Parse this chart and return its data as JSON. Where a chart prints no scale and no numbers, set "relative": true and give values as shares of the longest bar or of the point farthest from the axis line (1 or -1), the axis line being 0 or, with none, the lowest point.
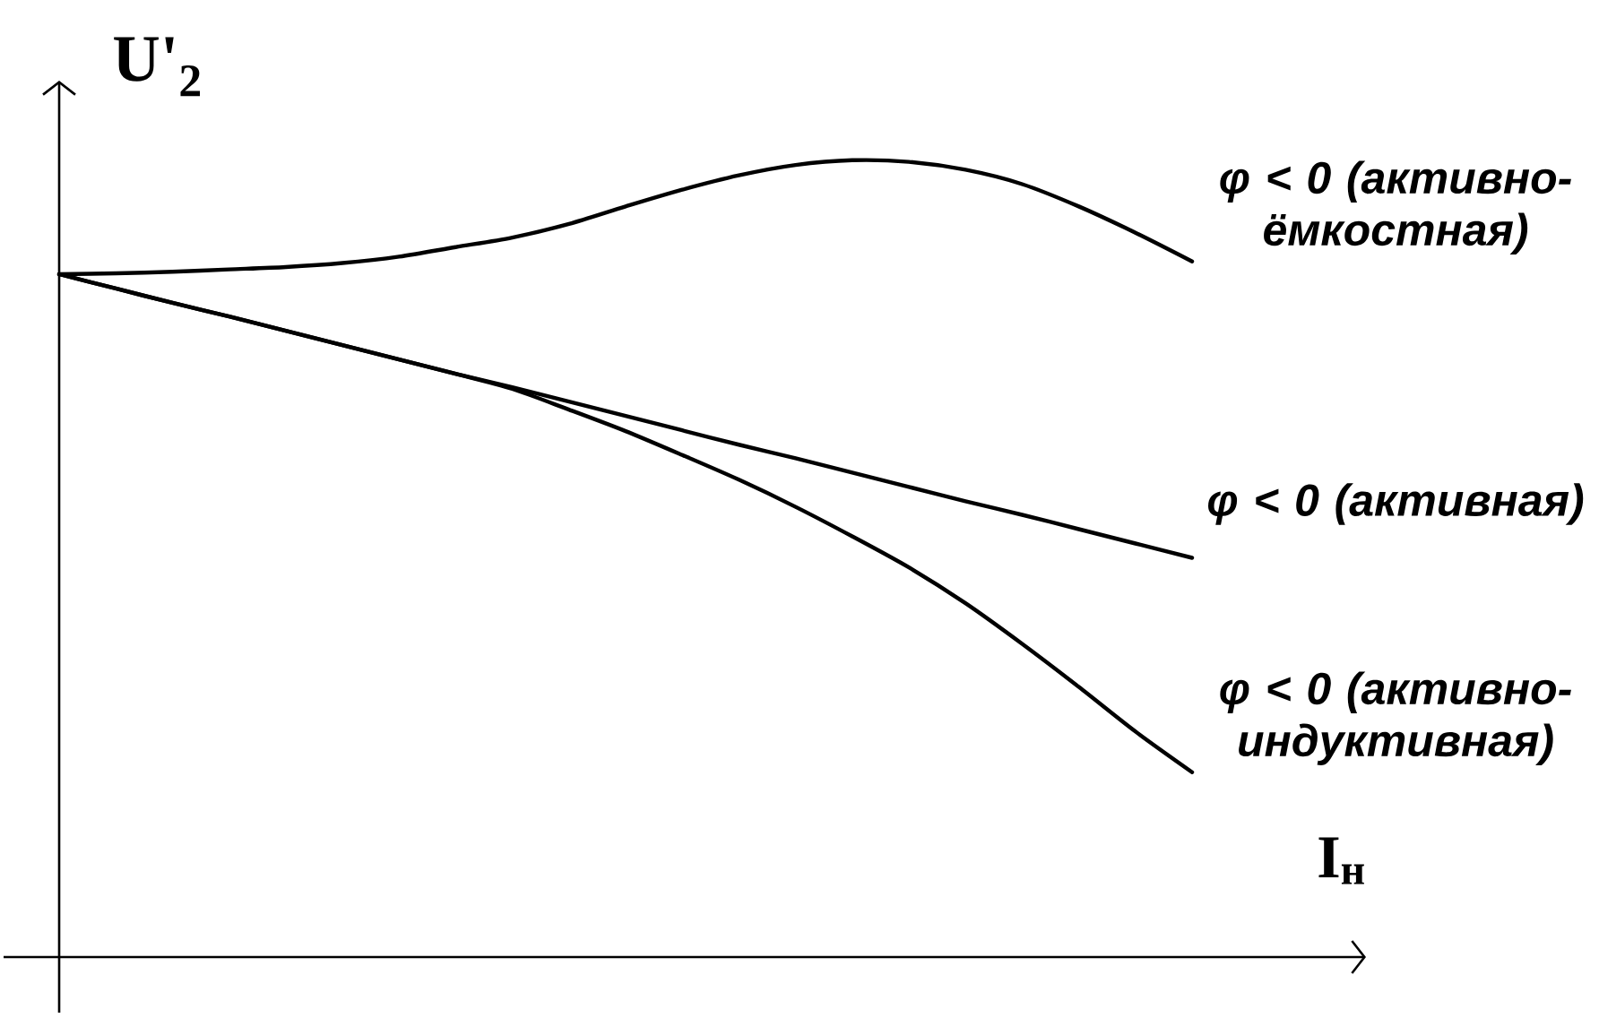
{
  "chart_data": {
    "type": "line",
    "relative": true,
    "xlabel": "I$_{н}$",
    "ylabel": "U'$_{2}$",
    "categories": [
      null,
      null,
      null,
      null,
      null,
      null,
      null,
      null,
      null,
      null,
      null,
      null,
      null,
      null,
      null,
      null,
      null,
      null,
      null,
      null,
      null
    ],
    "line_style": "solid",
    "series": [
      {
        "name": "φ < 0 (активно-ёмкостная)",
        "color": "#000000",
        "values": [
          0.857,
          0.858,
          0.86,
          0.863,
          0.866,
          0.871,
          0.879,
          0.891,
          0.903,
          0.92,
          0.942,
          0.963,
          0.981,
          0.994,
          1.0,
          0.998,
          0.988,
          0.97,
          0.942,
          0.909,
          0.873
        ]
      },
      {
        "name": "φ < 0 (активная)",
        "color": "#000000",
        "values": [
          0.857,
          0.839,
          0.821,
          0.804,
          0.786,
          0.768,
          0.75,
          0.732,
          0.715,
          0.697,
          0.679,
          0.661,
          0.643,
          0.626,
          0.608,
          0.59,
          0.572,
          0.555,
          0.537,
          0.519,
          0.501
        ]
      },
      {
        "name": "φ < 0 (активно-индуктивная)",
        "color": "#000000",
        "values": [
          0.857,
          0.839,
          0.821,
          0.804,
          0.786,
          0.768,
          0.75,
          0.732,
          0.713,
          0.687,
          0.66,
          0.63,
          0.599,
          0.565,
          0.528,
          0.489,
          0.444,
          0.393,
          0.339,
          0.283,
          0.232
        ]
      }
    ]
  }
}
